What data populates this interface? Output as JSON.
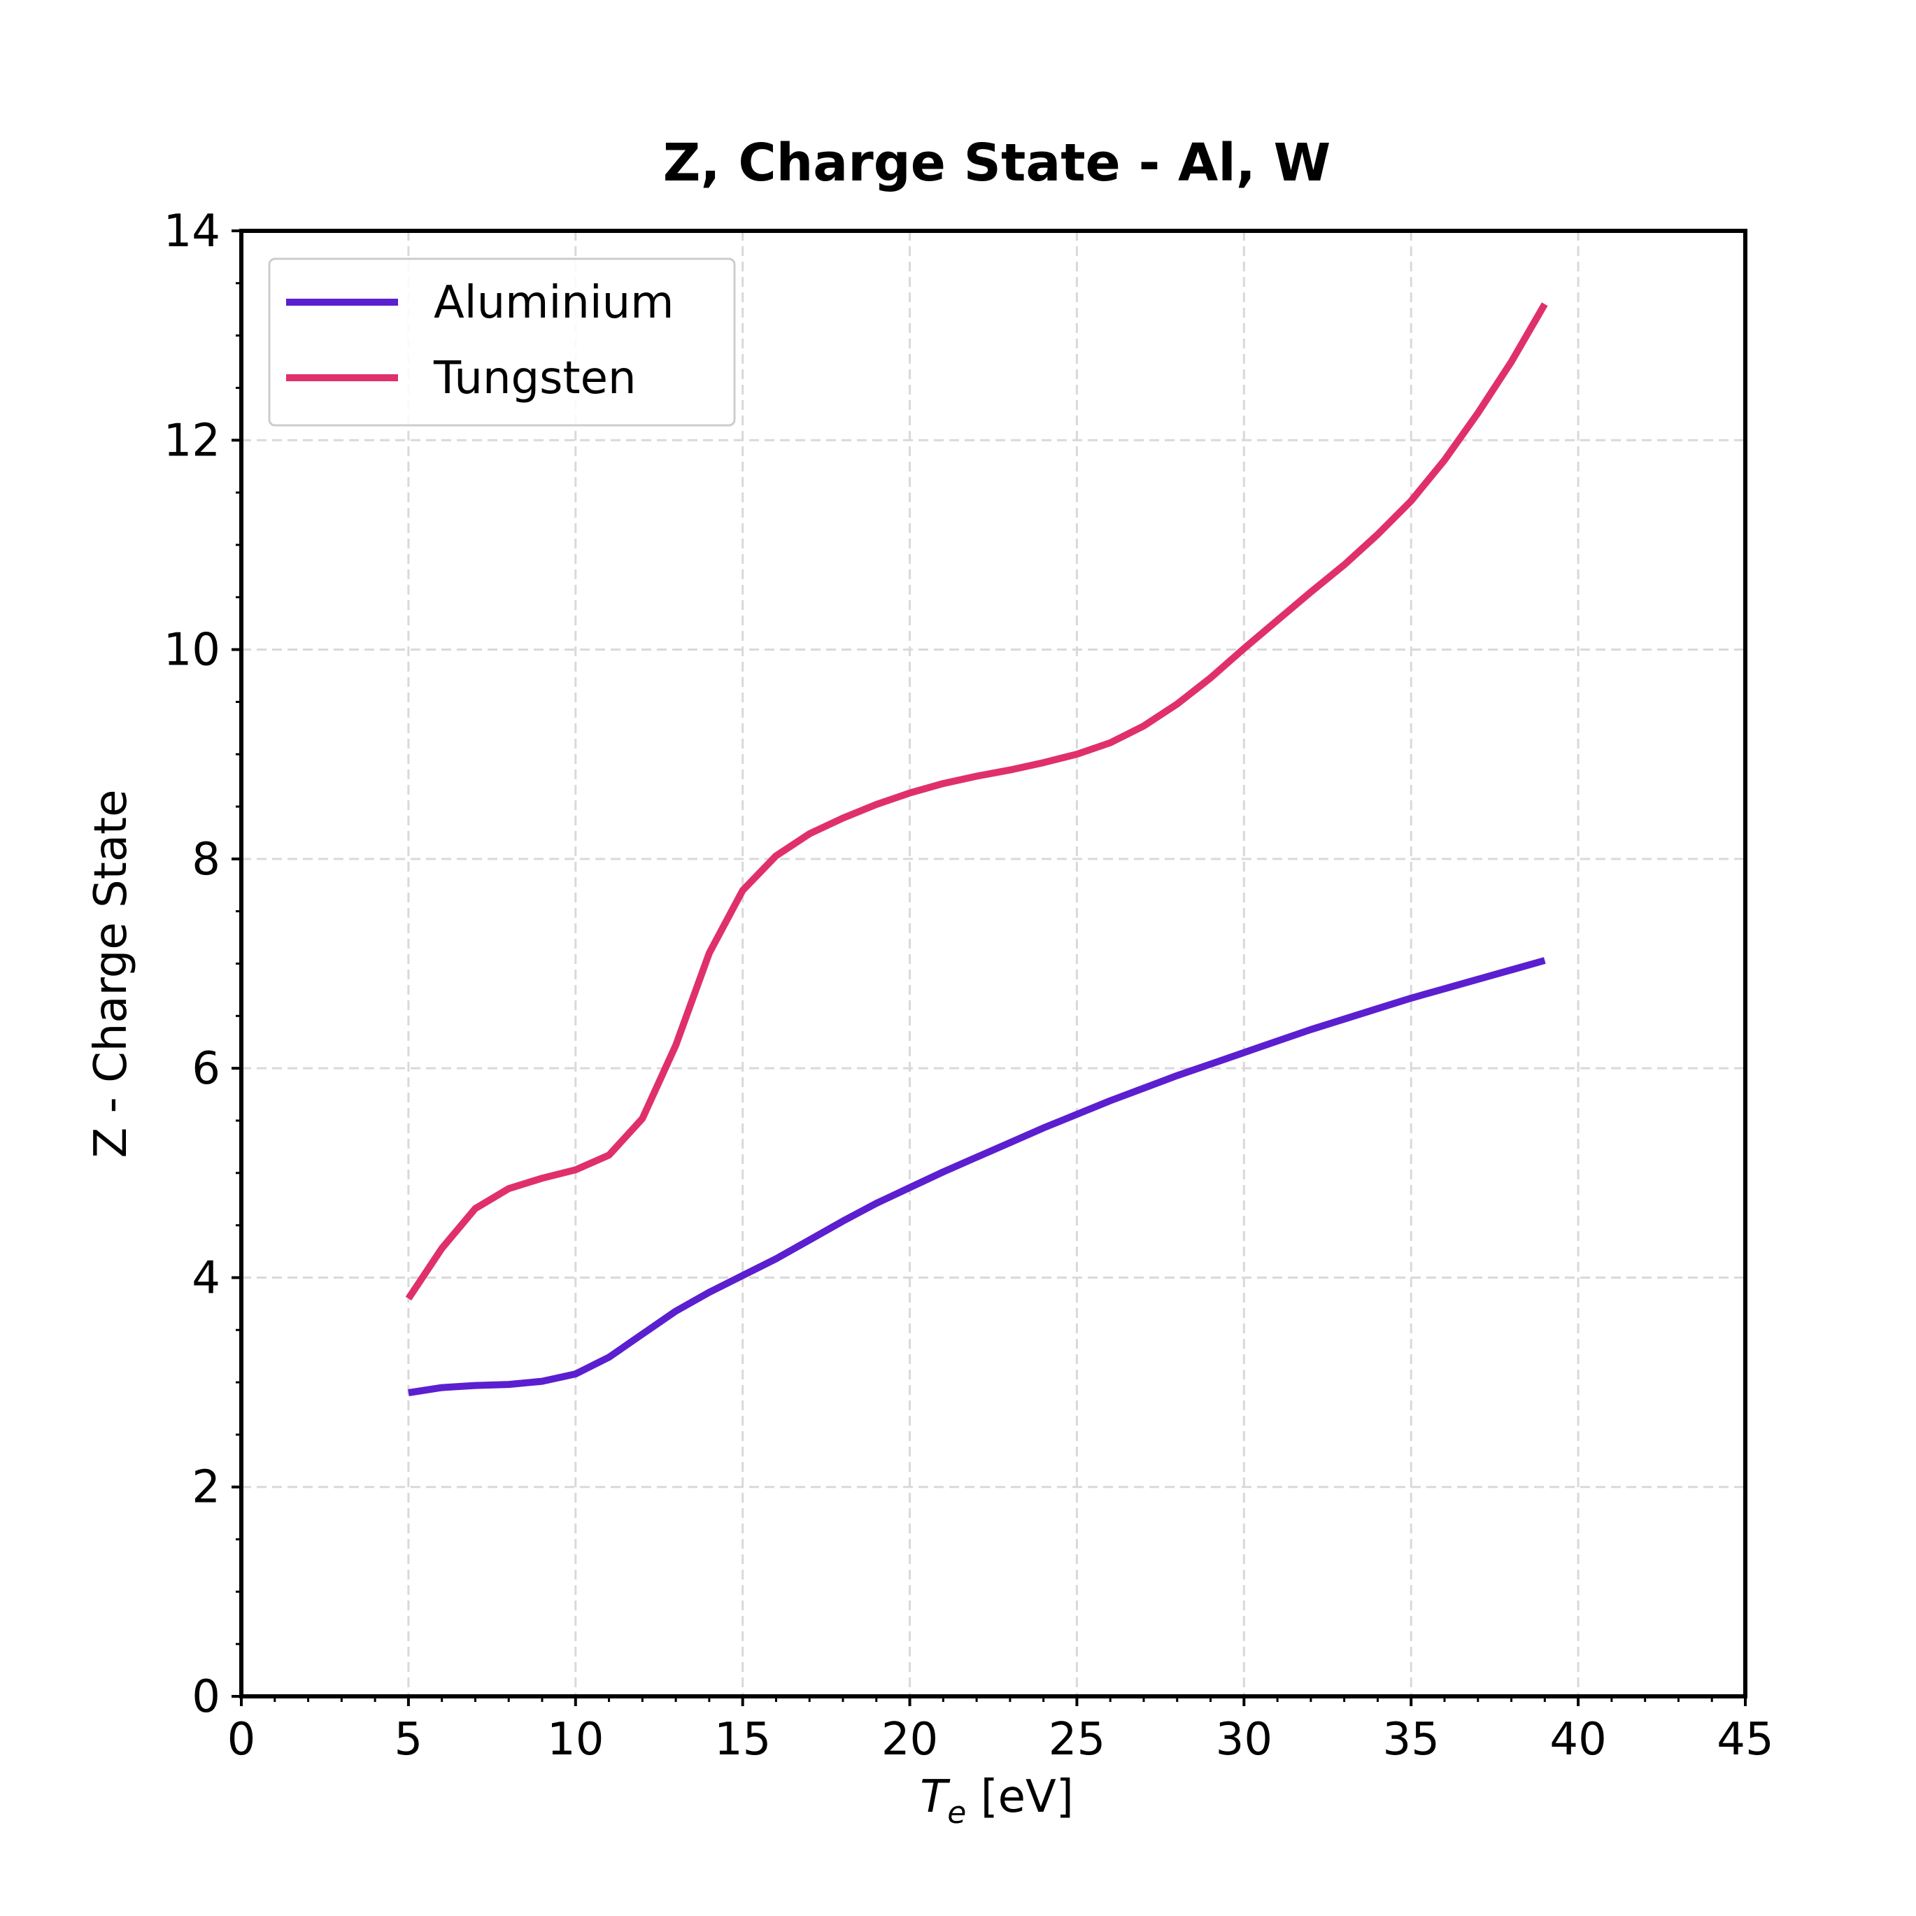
{
  "chart_data": {
    "type": "line",
    "title": "Z, Charge State - Al, W",
    "xlabel_main": "T",
    "xlabel_sub": "e",
    "xlabel_unit": " [eV]",
    "ylabel": "Z - Charge State",
    "xlim": [
      0,
      45
    ],
    "ylim": [
      0,
      14
    ],
    "xticks": [
      0,
      5,
      10,
      15,
      20,
      25,
      30,
      35,
      40,
      45
    ],
    "yticks": [
      0,
      2,
      4,
      6,
      8,
      10,
      12,
      14
    ],
    "grid": true,
    "legend_position": "top-left",
    "x": [
      5,
      6,
      7,
      8,
      9,
      10,
      11,
      12,
      13,
      14,
      15,
      16,
      17,
      18,
      19,
      20,
      21,
      22,
      23,
      24,
      25,
      26,
      27,
      28,
      29,
      30,
      31,
      32,
      33,
      34,
      35,
      36,
      37,
      38,
      39
    ],
    "series": [
      {
        "name": "Aluminium",
        "color": "#5b1fd0",
        "values": [
          2.9,
          2.95,
          2.97,
          2.98,
          3.01,
          3.08,
          3.24,
          3.46,
          3.68,
          3.86,
          4.02,
          4.18,
          4.36,
          4.54,
          4.71,
          4.86,
          5.01,
          5.15,
          5.29,
          5.43,
          5.56,
          5.69,
          5.81,
          5.93,
          6.04,
          6.15,
          6.26,
          6.37,
          6.47,
          6.57,
          6.67,
          6.76,
          6.85,
          6.94,
          7.03
        ]
      },
      {
        "name": "Tungsten",
        "color": "#e0306c",
        "values": [
          3.8,
          4.28,
          4.66,
          4.85,
          4.95,
          5.03,
          5.17,
          5.52,
          6.22,
          7.1,
          7.7,
          8.03,
          8.24,
          8.39,
          8.52,
          8.63,
          8.72,
          8.79,
          8.85,
          8.92,
          9.0,
          9.11,
          9.27,
          9.48,
          9.73,
          10.01,
          10.28,
          10.55,
          10.81,
          11.1,
          11.42,
          11.81,
          12.26,
          12.75,
          13.3
        ]
      }
    ]
  }
}
